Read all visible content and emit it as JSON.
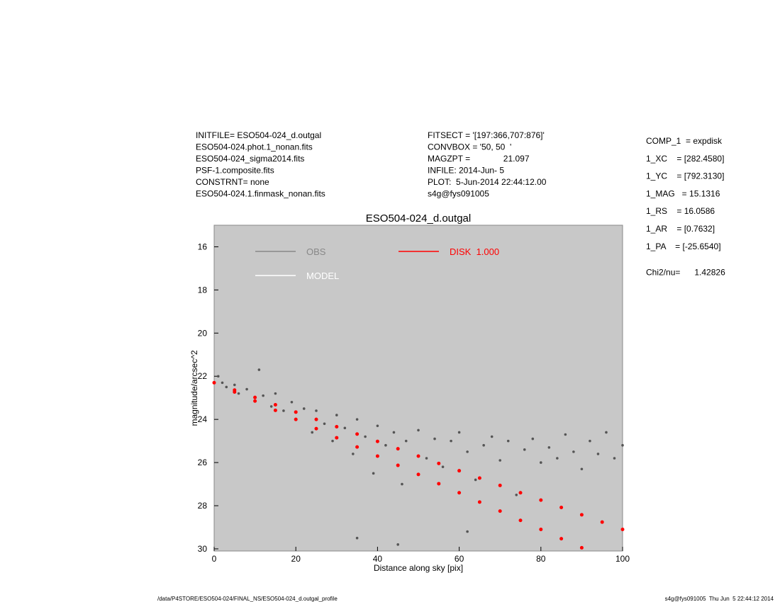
{
  "header": {
    "left": [
      "INITFILE= ESO504-024_d.outgal",
      "ESO504-024.phot.1_nonan.fits",
      "ESO504-024_sigma2014.fits",
      "PSF-1.composite.fits",
      "CONSTRNT= none",
      "ESO504-024.1.finmask_nonan.fits"
    ],
    "middle": [
      "FITSECT = '[197:366,707:876]'",
      "CONVBOX = '50, 50  '",
      "MAGZPT =              21.097",
      "INFILE: 2014-Jun- 5",
      "PLOT:  5-Jun-2014 22:44:12.00",
      "s4g@fys091005"
    ],
    "right": [
      "COMP_1  = expdisk",
      "1_XC    = [282.4580]",
      "1_YC    = [792.3130]",
      "1_MAG   = 15.1316",
      "1_RS    = 16.0586",
      "1_AR    = [0.7632]",
      "1_PA    = [-25.6540]",
      "Chi2/nu=      1.42826"
    ]
  },
  "footer": {
    "path": "/data/P4STORE/ESO504-024/FINAL_NS/ESO504-024_d.outgal_profile",
    "stamp": "s4g@fys091005  Thu Jun  5 22:44:12 2014"
  },
  "chart_data": {
    "type": "scatter",
    "title": "ESO504-024_d.outgal",
    "x_label": "Distance along sky [pix]",
    "y_label": "magnitude/arcsec^2",
    "xlim": [
      0,
      100
    ],
    "xticks": [
      0,
      20,
      40,
      60,
      80,
      100
    ],
    "ylim": [
      15,
      30.1
    ],
    "y_inverted": true,
    "yticks": [
      16,
      18,
      20,
      22,
      24,
      26,
      28,
      30
    ],
    "background": "#c8c8c8",
    "series": [
      {
        "name": "OBS",
        "color": "#555555",
        "x": [
          1,
          2,
          3,
          5,
          6,
          8,
          10,
          11,
          12,
          14,
          15,
          17,
          19,
          20,
          22,
          24,
          25,
          27,
          29,
          30,
          32,
          34,
          35,
          37,
          39,
          40,
          42,
          44,
          46,
          47,
          50,
          52,
          54,
          56,
          58,
          60,
          62,
          64,
          66,
          68,
          70,
          72,
          74,
          76,
          78,
          80,
          82,
          84,
          86,
          88,
          90,
          92,
          94,
          96,
          98,
          100,
          45,
          35,
          62
        ],
        "values": [
          22.0,
          22.3,
          22.5,
          22.4,
          22.8,
          22.6,
          23.0,
          21.7,
          22.9,
          23.4,
          22.8,
          23.6,
          23.2,
          24.0,
          23.5,
          24.6,
          23.6,
          24.2,
          25.0,
          23.8,
          24.4,
          25.6,
          24.0,
          24.8,
          26.5,
          24.3,
          25.2,
          24.6,
          27.0,
          25.0,
          24.5,
          25.8,
          24.9,
          26.2,
          25.0,
          24.6,
          25.5,
          26.8,
          25.2,
          24.8,
          25.9,
          25.0,
          27.5,
          25.4,
          24.9,
          26.0,
          25.3,
          25.8,
          24.7,
          25.5,
          26.3,
          25.0,
          25.6,
          24.6,
          25.8,
          25.2,
          29.8,
          29.5,
          29.2
        ]
      },
      {
        "name": "MODEL",
        "color": "#ffffff",
        "x": [],
        "values": []
      },
      {
        "name": "DISK  1.000",
        "color": "#ff0000",
        "x": [
          0,
          5,
          10,
          15,
          20,
          25,
          30,
          35,
          40,
          45,
          50,
          55,
          60,
          65,
          70,
          75,
          80,
          85,
          90,
          5,
          10,
          15,
          20,
          25,
          30,
          35,
          40,
          45,
          50,
          55,
          60,
          65,
          70,
          75,
          80,
          85,
          90,
          95,
          100
        ],
        "values": [
          22.3,
          22.73,
          23.15,
          23.58,
          24.0,
          24.43,
          24.85,
          25.28,
          25.7,
          26.13,
          26.55,
          26.98,
          27.4,
          27.83,
          28.25,
          28.68,
          29.1,
          29.53,
          29.95,
          22.64,
          22.98,
          23.32,
          23.66,
          24.0,
          24.34,
          24.68,
          25.02,
          25.36,
          25.7,
          26.04,
          26.38,
          26.72,
          27.06,
          27.4,
          27.74,
          28.08,
          28.42,
          28.76,
          29.1
        ]
      }
    ]
  }
}
